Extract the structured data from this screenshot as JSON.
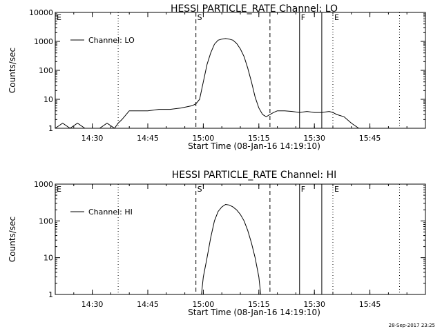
{
  "timestamp": "28-Sep-2017 23:25",
  "chart_data": [
    {
      "type": "line",
      "title": "HESSI PARTICLE_RATE Channel: LO",
      "xlabel": "Start Time (08-Jan-16 14:19:10)",
      "ylabel": "Counts/sec",
      "y_scale": "log",
      "xlim": [
        "14:20:00",
        "16:00:00"
      ],
      "ylim": [
        1,
        10000
      ],
      "x_ticks": [
        "14:30",
        "14:45",
        "15:00",
        "15:15",
        "15:30",
        "15:45"
      ],
      "y_ticks": [
        "1",
        "10",
        "100",
        "1000",
        "10000"
      ],
      "legend": {
        "placement": "top-left",
        "entries": [
          "Channel: LO"
        ]
      },
      "markers": [
        {
          "label": "E",
          "time": "14:20:00",
          "style": "solid"
        },
        {
          "label": "",
          "time": "14:37:00",
          "style": "dotted"
        },
        {
          "label": "S",
          "time": "14:58:00",
          "style": "dashed"
        },
        {
          "label": "",
          "time": "15:18:00",
          "style": "dashed"
        },
        {
          "label": "F",
          "time": "15:26:00",
          "style": "solid"
        },
        {
          "label": "",
          "time": "15:32:00",
          "style": "solid"
        },
        {
          "label": "E",
          "time": "15:35:00",
          "style": "dotted"
        },
        {
          "label": "",
          "time": "15:53:00",
          "style": "dotted"
        }
      ],
      "series": [
        {
          "name": "Channel: LO",
          "x": [
            "14:20",
            "14:22",
            "14:24",
            "14:26",
            "14:28",
            "14:30",
            "14:32",
            "14:34",
            "14:36",
            "14:37",
            "14:38",
            "14:40",
            "14:42",
            "14:45",
            "14:48",
            "14:51",
            "14:54",
            "14:57",
            "14:58",
            "14:59",
            "15:00",
            "15:01",
            "15:02",
            "15:03",
            "15:04",
            "15:05",
            "15:06",
            "15:07",
            "15:08",
            "15:09",
            "15:10",
            "15:11",
            "15:12",
            "15:13",
            "15:14",
            "15:15",
            "15:16",
            "15:17",
            "15:18",
            "15:19",
            "15:20",
            "15:22",
            "15:24",
            "15:26",
            "15:28",
            "15:30",
            "15:32",
            "15:34",
            "15:35",
            "15:36",
            "15:38",
            "15:40",
            "15:42",
            "15:45",
            "15:48",
            "15:52",
            "15:56",
            "16:00"
          ],
          "values": [
            1,
            1.5,
            1,
            1.5,
            1,
            1,
            1,
            1.5,
            1,
            1.5,
            2,
            4,
            4,
            4,
            4.5,
            4.5,
            5,
            6,
            7,
            10,
            40,
            160,
            400,
            800,
            1100,
            1200,
            1250,
            1200,
            1100,
            850,
            550,
            300,
            120,
            40,
            12,
            5,
            3,
            2.5,
            3,
            3.5,
            4,
            4,
            3.8,
            3.5,
            3.8,
            3.5,
            3.5,
            3.8,
            3.5,
            3,
            2.5,
            1.5,
            1,
            1,
            1,
            1,
            1,
            1
          ]
        }
      ]
    },
    {
      "type": "line",
      "title": "HESSI PARTICLE_RATE Channel: HI",
      "xlabel": "Start Time (08-Jan-16 14:19:10)",
      "ylabel": "Counts/sec",
      "y_scale": "log",
      "xlim": [
        "14:20:00",
        "16:00:00"
      ],
      "ylim": [
        1,
        1000
      ],
      "x_ticks": [
        "14:30",
        "14:45",
        "15:00",
        "15:15",
        "15:30",
        "15:45"
      ],
      "y_ticks": [
        "1",
        "10",
        "100",
        "1000"
      ],
      "legend": {
        "placement": "top-left",
        "entries": [
          "Channel: HI"
        ]
      },
      "markers": [
        {
          "label": "E",
          "time": "14:20:00",
          "style": "solid"
        },
        {
          "label": "",
          "time": "14:37:00",
          "style": "dotted"
        },
        {
          "label": "S",
          "time": "14:58:00",
          "style": "dashed"
        },
        {
          "label": "",
          "time": "15:18:00",
          "style": "dashed"
        },
        {
          "label": "F",
          "time": "15:26:00",
          "style": "solid"
        },
        {
          "label": "",
          "time": "15:32:00",
          "style": "solid"
        },
        {
          "label": "E",
          "time": "15:35:00",
          "style": "dotted"
        },
        {
          "label": "",
          "time": "15:53:00",
          "style": "dotted"
        }
      ],
      "series": [
        {
          "name": "Channel: HI",
          "x": [
            "14:59:30",
            "15:00",
            "15:01",
            "15:02",
            "15:03",
            "15:04",
            "15:05",
            "15:06",
            "15:07",
            "15:08",
            "15:09",
            "15:10",
            "15:11",
            "15:12",
            "15:13",
            "15:14",
            "15:15",
            "15:15:30"
          ],
          "values": [
            1,
            3,
            10,
            35,
            100,
            180,
            240,
            280,
            270,
            240,
            200,
            150,
            100,
            55,
            25,
            10,
            3,
            1
          ]
        }
      ]
    }
  ]
}
